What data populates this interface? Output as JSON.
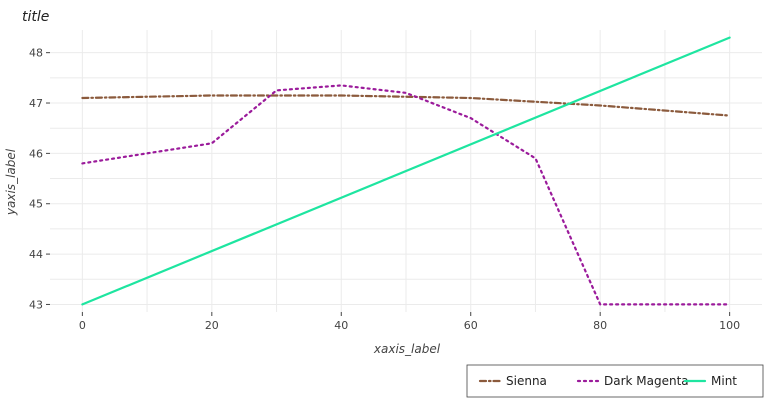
{
  "chart_data": {
    "type": "line",
    "title": "title",
    "xlabel": "xaxis_label",
    "ylabel": "yaxis_label",
    "xlim": [
      -5,
      105
    ],
    "ylim": [
      42.85,
      48.45
    ],
    "x_ticks": [
      0,
      20,
      40,
      60,
      80,
      100
    ],
    "y_ticks": [
      43,
      44,
      45,
      46,
      47,
      48
    ],
    "grid": true,
    "legend_position": "bottom-right",
    "series": [
      {
        "name": "Sienna",
        "color": "#8B5A3C",
        "dash": "dashdot",
        "points": [
          [
            0,
            47.1
          ],
          [
            20,
            47.15
          ],
          [
            40,
            47.15
          ],
          [
            60,
            47.1
          ],
          [
            80,
            46.95
          ],
          [
            100,
            46.75
          ]
        ]
      },
      {
        "name": "Dark Magenta",
        "color": "#9B1B9B",
        "dash": "dotted",
        "points": [
          [
            0,
            45.8
          ],
          [
            20,
            46.2
          ],
          [
            30,
            47.25
          ],
          [
            40,
            47.35
          ],
          [
            50,
            47.2
          ],
          [
            60,
            46.7
          ],
          [
            70,
            45.9
          ],
          [
            80,
            43.0
          ],
          [
            100,
            43.0
          ]
        ]
      },
      {
        "name": "Mint",
        "color": "#1EE5A0",
        "dash": "solid",
        "points": [
          [
            0,
            43.0
          ],
          [
            100,
            48.3
          ]
        ]
      }
    ]
  }
}
